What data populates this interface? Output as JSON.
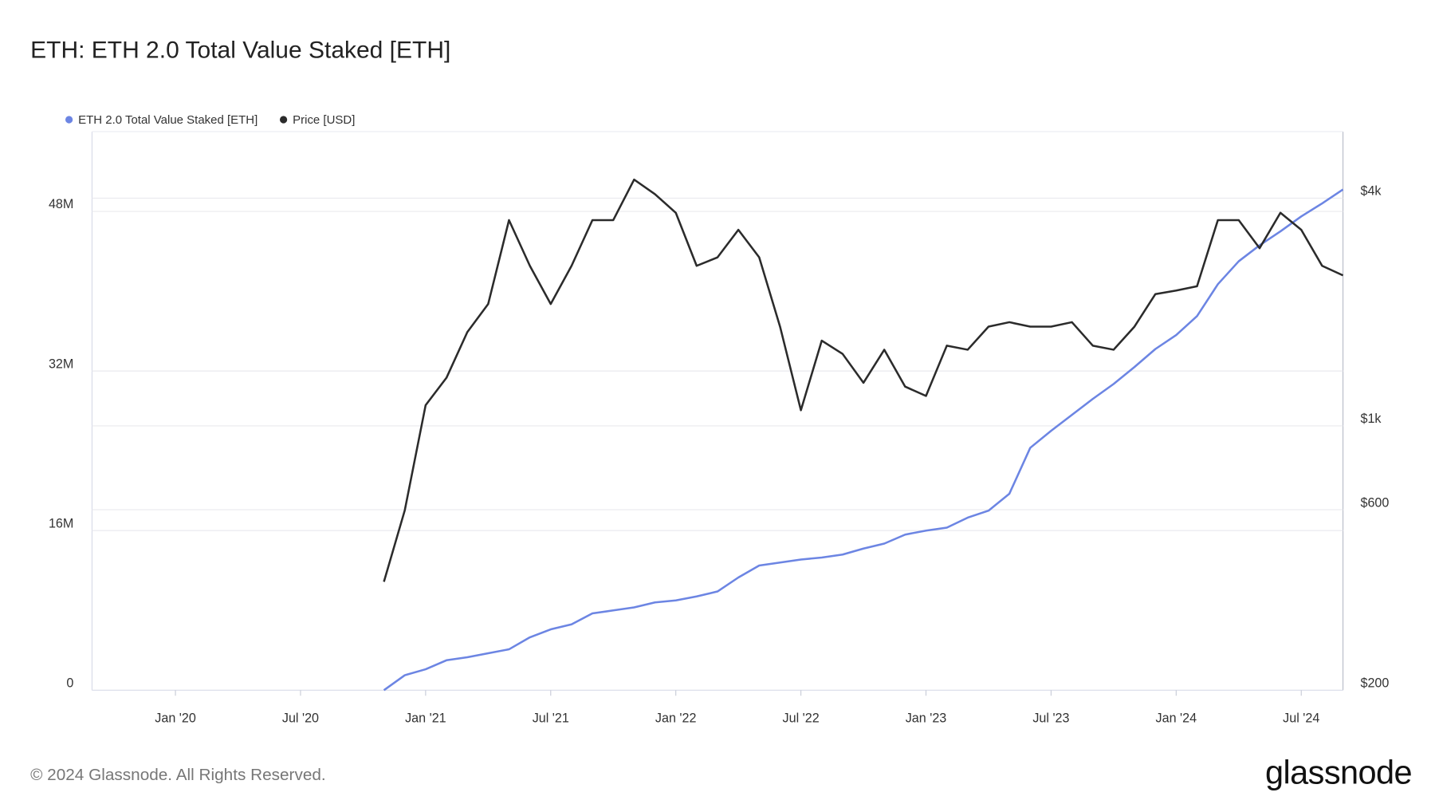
{
  "chart_data": {
    "type": "line",
    "title": "ETH: ETH 2.0 Total Value Staked [ETH]",
    "footer": "© 2024 Glassnode. All Rights Reserved.",
    "logo": "glassnode",
    "legend": "top-left",
    "grid": true,
    "x": [
      "2020-11",
      "2020-12",
      "2021-01",
      "2021-02",
      "2021-03",
      "2021-04",
      "2021-05",
      "2021-06",
      "2021-07",
      "2021-08",
      "2021-09",
      "2021-10",
      "2021-11",
      "2021-12",
      "2022-01",
      "2022-02",
      "2022-03",
      "2022-04",
      "2022-05",
      "2022-06",
      "2022-07",
      "2022-08",
      "2022-09",
      "2022-10",
      "2022-11",
      "2022-12",
      "2023-01",
      "2023-02",
      "2023-03",
      "2023-04",
      "2023-05",
      "2023-06",
      "2023-07",
      "2023-08",
      "2023-09",
      "2023-10",
      "2023-11",
      "2023-12",
      "2024-01",
      "2024-02",
      "2024-03",
      "2024-04",
      "2024-05",
      "2024-06",
      "2024-07",
      "2024-08",
      "2024-09"
    ],
    "xlim": [
      "2019-09",
      "2024-09"
    ],
    "xticks": [
      {
        "value": "2020-01",
        "label": "Jan '20"
      },
      {
        "value": "2020-07",
        "label": "Jul '20"
      },
      {
        "value": "2021-01",
        "label": "Jan '21"
      },
      {
        "value": "2021-07",
        "label": "Jul '21"
      },
      {
        "value": "2022-01",
        "label": "Jan '22"
      },
      {
        "value": "2022-07",
        "label": "Jul '22"
      },
      {
        "value": "2023-01",
        "label": "Jan '23"
      },
      {
        "value": "2023-07",
        "label": "Jul '23"
      },
      {
        "value": "2024-01",
        "label": "Jan '24"
      },
      {
        "value": "2024-07",
        "label": "Jul '24"
      }
    ],
    "ylim": [
      0,
      56000000
    ],
    "yticks": [
      0,
      {
        "value": 16000000,
        "label": "16M"
      },
      {
        "value": 32000000,
        "label": "32M"
      },
      {
        "value": 48000000,
        "label": "48M"
      }
    ],
    "y2lim": [
      200,
      6000
    ],
    "y2_log": true,
    "y2ticks": [
      {
        "value": 200,
        "label": "$200"
      },
      {
        "value": 600,
        "label": "$600"
      },
      {
        "value": 1000,
        "label": "$1k"
      },
      {
        "value": 4000,
        "label": "$4k"
      }
    ],
    "series": [
      {
        "name": "ETH 2.0 Total Value Staked [ETH]",
        "color": "#6c85e3",
        "values": [
          0,
          1500000,
          2100000,
          3000000,
          3300000,
          3700000,
          4100000,
          5300000,
          6100000,
          6600000,
          7700000,
          8000000,
          8300000,
          8800000,
          9000000,
          9400000,
          9900000,
          11300000,
          12500000,
          12800000,
          13100000,
          13300000,
          13600000,
          14200000,
          14700000,
          15600000,
          16000000,
          16300000,
          17300000,
          18000000,
          19700000,
          24300000,
          26000000,
          27600000,
          29200000,
          30700000,
          32400000,
          34200000,
          35600000,
          37500000,
          40700000,
          43000000,
          44600000,
          46000000,
          47500000,
          48800000,
          50200000
        ]
      },
      {
        "name": "Price [USD]",
        "color": "#2b2b2b",
        "axis": "y2",
        "values": [
          387,
          598,
          1134,
          1340,
          1770,
          2100,
          3500,
          2650,
          2100,
          2650,
          3500,
          3500,
          4480,
          4100,
          3660,
          2650,
          2790,
          3300,
          2790,
          1830,
          1100,
          1680,
          1550,
          1300,
          1590,
          1270,
          1200,
          1630,
          1590,
          1830,
          1880,
          1830,
          1830,
          1880,
          1630,
          1590,
          1830,
          2230,
          2280,
          2340,
          3500,
          3500,
          2950,
          3660,
          3300,
          2650,
          2500
        ]
      }
    ]
  }
}
